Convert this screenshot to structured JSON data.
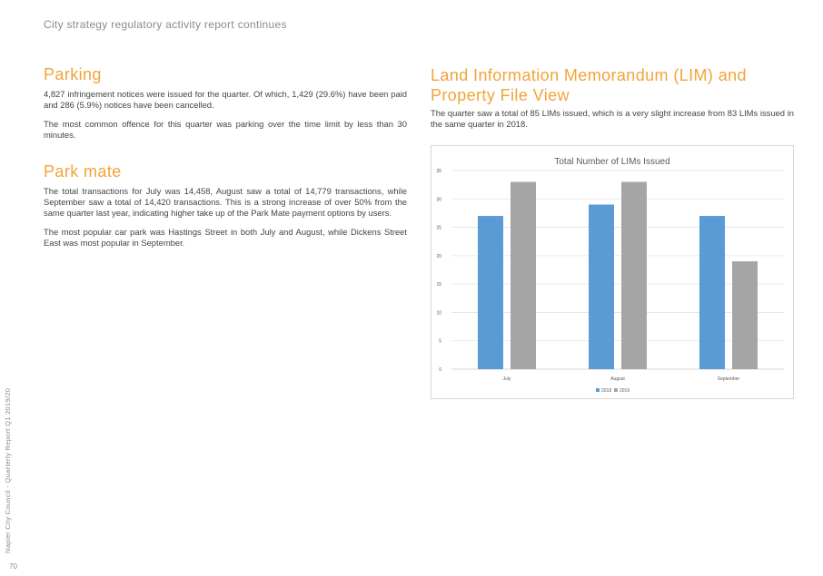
{
  "header": {
    "title": "City strategy regulatory activity report continues"
  },
  "footer": {
    "side_text": "Napier City Council - Quarterly Report Q1 2019/20",
    "page_number": "70"
  },
  "parking": {
    "heading": "Parking",
    "paragraphs": [
      "4,827 infringement notices were issued for the quarter. Of which, 1,429 (29.6%) have been paid and 286 (5.9%) notices have been cancelled.",
      "The most common offence for this quarter was parking over the time limit by less than 30 minutes."
    ]
  },
  "parkmate": {
    "heading": "Park mate",
    "paragraphs": [
      "The total transactions for July was 14,458, August saw a total of 14,779 transactions, while September saw a total of 14,420 transactions. This is a strong increase of over 50% from the same quarter last year, indicating higher take up of the Park Mate payment options by users.",
      "The most popular car park was Hastings Street in both July and August, while Dickens Street East was most popular in September."
    ]
  },
  "lim": {
    "heading": "Land Information Memorandum (LIM) and Property File View",
    "paragraph": "The quarter saw a total of 85 LIMs issued, which is a very slight increase from 83 LIMs issued in the same quarter in 2018."
  },
  "chart_data": {
    "type": "bar",
    "title": "Total Number of LIMs Issued",
    "categories": [
      "July",
      "August",
      "September"
    ],
    "series": [
      {
        "name": "2018",
        "values": [
          27,
          29,
          27
        ],
        "color": "#5b9bd5"
      },
      {
        "name": "2019",
        "values": [
          33,
          33,
          19
        ],
        "color": "#a5a5a5"
      }
    ],
    "ylim": [
      0,
      35
    ],
    "yticks": [
      "0",
      "5",
      "10",
      "15",
      "20",
      "25",
      "30",
      "35"
    ],
    "grid": true,
    "legend": "bottom"
  }
}
